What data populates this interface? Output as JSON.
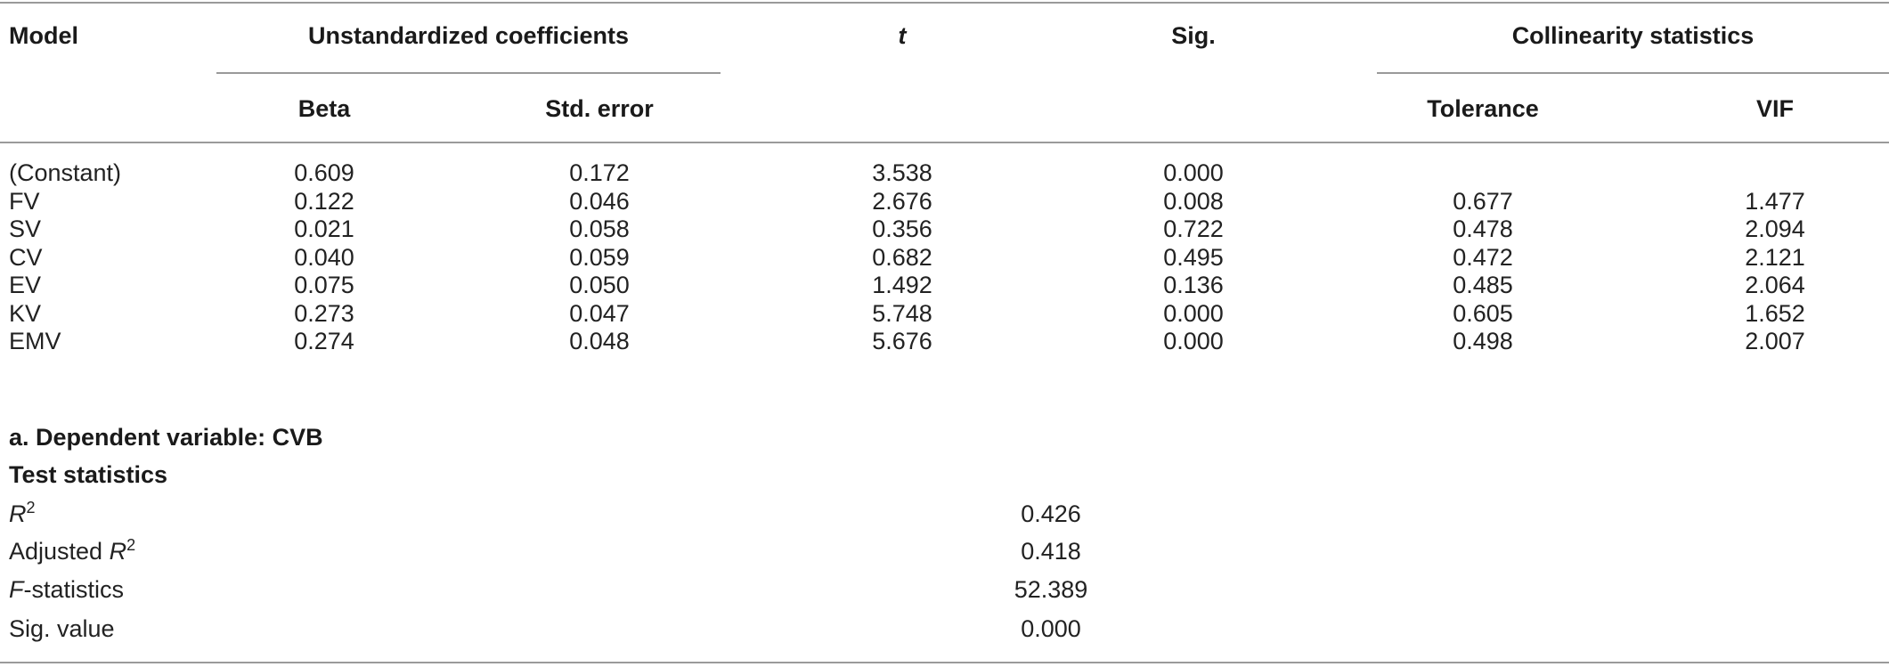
{
  "table": {
    "headers": {
      "model": "Model",
      "unstd": "Unstandardized coefficients",
      "t": "t",
      "sig": "Sig.",
      "collinearity": "Collinearity statistics",
      "beta": "Beta",
      "std_error": "Std. error",
      "tolerance": "Tolerance",
      "vif": "VIF"
    },
    "rows": [
      {
        "model": "(Constant)",
        "beta": "0.609",
        "std_error": "0.172",
        "t": "3.538",
        "sig": "0.000",
        "tolerance": "",
        "vif": ""
      },
      {
        "model": "FV",
        "beta": "0.122",
        "std_error": "0.046",
        "t": "2.676",
        "sig": "0.008",
        "tolerance": "0.677",
        "vif": "1.477"
      },
      {
        "model": "SV",
        "beta": "0.021",
        "std_error": "0.058",
        "t": "0.356",
        "sig": "0.722",
        "tolerance": "0.478",
        "vif": "2.094"
      },
      {
        "model": "CV",
        "beta": "0.040",
        "std_error": "0.059",
        "t": "0.682",
        "sig": "0.495",
        "tolerance": "0.472",
        "vif": "2.121"
      },
      {
        "model": "EV",
        "beta": "0.075",
        "std_error": "0.050",
        "t": "1.492",
        "sig": "0.136",
        "tolerance": "0.485",
        "vif": "2.064"
      },
      {
        "model": "KV",
        "beta": "0.273",
        "std_error": "0.047",
        "t": "5.748",
        "sig": "0.000",
        "tolerance": "0.605",
        "vif": "1.652"
      },
      {
        "model": "EMV",
        "beta": "0.274",
        "std_error": "0.048",
        "t": "5.676",
        "sig": "0.000",
        "tolerance": "0.498",
        "vif": "2.007"
      }
    ],
    "footnote": "a. Dependent variable: CVB",
    "test_statistics": {
      "title": "Test statistics",
      "r2": {
        "label_var": "R",
        "label_sup": "2",
        "value": "0.426"
      },
      "adj_r2": {
        "label_prefix": "Adjusted ",
        "label_var": "R",
        "label_sup": "2",
        "value": "0.418"
      },
      "f": {
        "label_var": "F",
        "label_suffix": "-statistics",
        "value": "52.389"
      },
      "sig": {
        "label": "Sig. value",
        "value": "0.000"
      }
    }
  }
}
